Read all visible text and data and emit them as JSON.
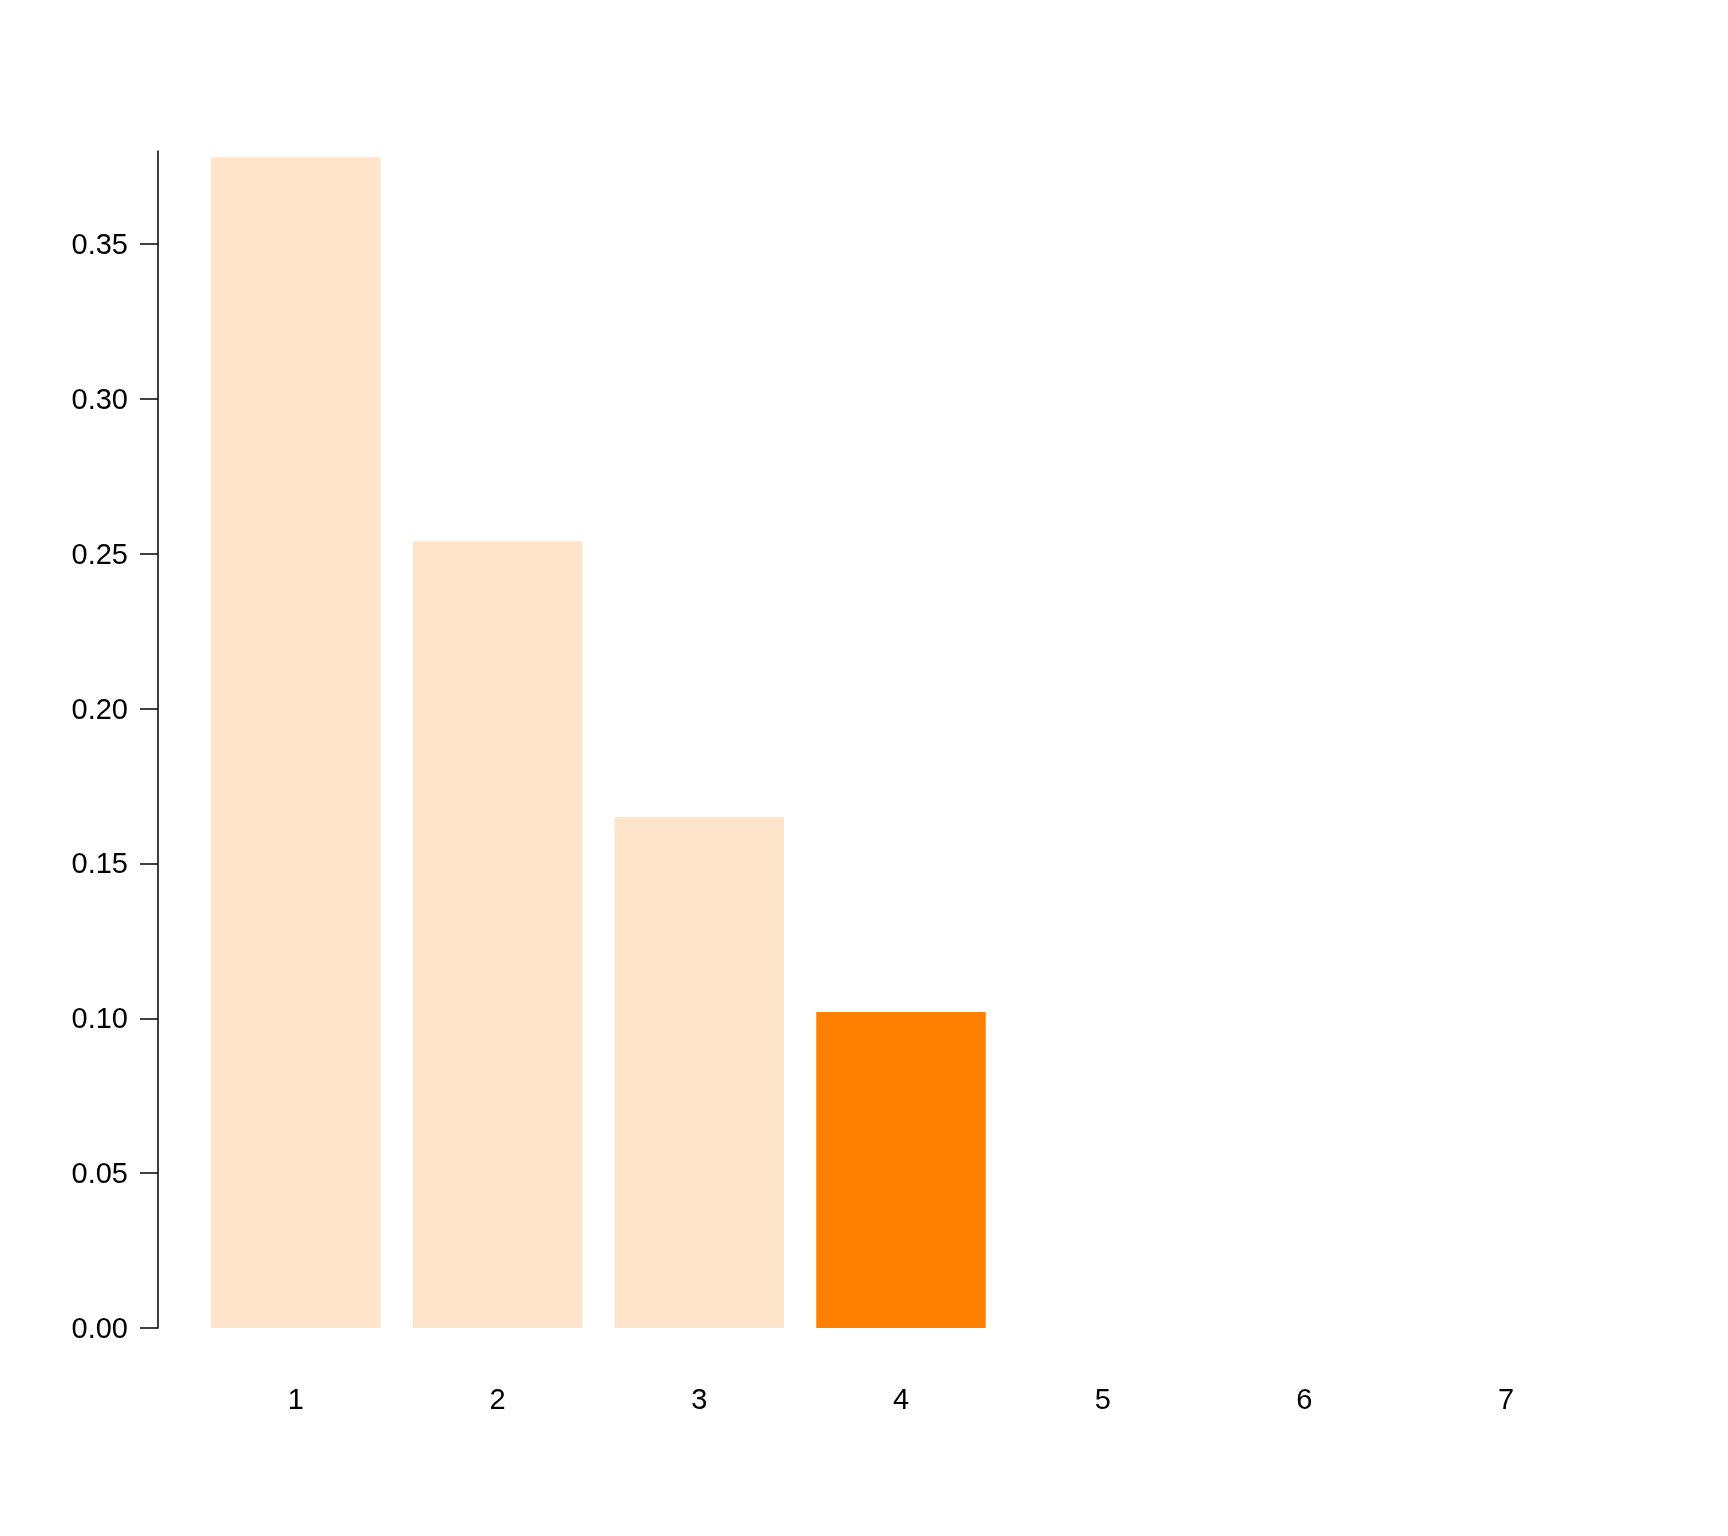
{
  "chart_data": {
    "type": "bar",
    "categories": [
      "1",
      "2",
      "3",
      "4",
      "5",
      "6",
      "7"
    ],
    "values": [
      0.378,
      0.254,
      0.165,
      0.102,
      0,
      0,
      0
    ],
    "colors": [
      "#fee4cb",
      "#fee4cb",
      "#fee4cb",
      "#ff7f00",
      "#fee4cb",
      "#fee4cb",
      "#fee4cb"
    ],
    "ylim": [
      0,
      0.38
    ],
    "yticks": [
      {
        "value": 0,
        "label": "0.00"
      },
      0.05,
      {
        "value": 0.1,
        "label": "0.10"
      },
      0.15,
      {
        "value": 0.2,
        "label": "0.20"
      },
      0.25,
      {
        "value": 0.3,
        "label": "0.30"
      },
      0.35
    ],
    "grid": false
  }
}
